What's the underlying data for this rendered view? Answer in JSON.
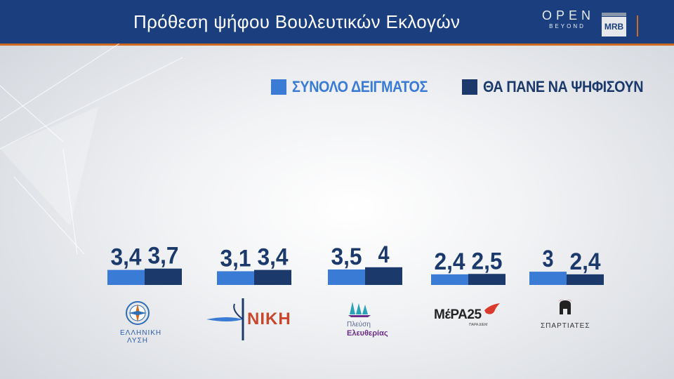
{
  "header": {
    "title": "Πρόθεση ψήφου Βουλευτικών Εκλογών",
    "brand_open": "OPEN",
    "brand_open_sub": "BEYOND",
    "brand_mrb": "MRB"
  },
  "colors": {
    "series_1": "#3a7bd5",
    "series_2": "#1b3a6b",
    "header_bg": "#1b3f7e",
    "header_accent": "#d2691e",
    "label_text": "#1b3a6b"
  },
  "logos": {
    "elliniki_lysi": "ΕΛΛΗΝΙΚΗ ΛΥΣΗ",
    "niki": "ΝΙΚΗ",
    "plefsi_line1": "Πλεύση",
    "plefsi_line2": "Ελευθερίας",
    "mera25": "ΜέΡΑ25",
    "mera25_sub": "ΠΑΡΑ ΔΙΕΜ",
    "spartiates": "ΣΠΑΡΤΙΑΤΕΣ"
  },
  "chart_data": {
    "type": "bar",
    "categories": [
      "ΕΛΛΗΝΙΚΗ ΛΥΣΗ",
      "ΝΙΚΗ",
      "Πλεύση Ελευθερίας",
      "ΜέΡΑ25",
      "ΣΠΑΡΤΙΑΤΕΣ"
    ],
    "series": [
      {
        "name": "ΣΥΝΟΛΟ ΔΕΙΓΜΑΤΟΣ",
        "values": [
          3.4,
          3.1,
          3.5,
          2.4,
          3.0
        ],
        "labels": [
          "3,4",
          "3,1",
          "3,5",
          "2,4",
          "3"
        ]
      },
      {
        "name": "ΘΑ ΠΑΝΕ ΝΑ ΨΗΦΙΣΟΥΝ",
        "values": [
          3.7,
          3.4,
          4.0,
          2.5,
          2.4
        ],
        "labels": [
          "3,7",
          "3,4",
          "4",
          "2,5",
          "2,4"
        ]
      }
    ],
    "title": "Πρόθεση ψήφου Βουλευτικών Εκλογών",
    "xlabel": "",
    "ylabel": "",
    "grid": false,
    "legend_position": "top-right"
  }
}
